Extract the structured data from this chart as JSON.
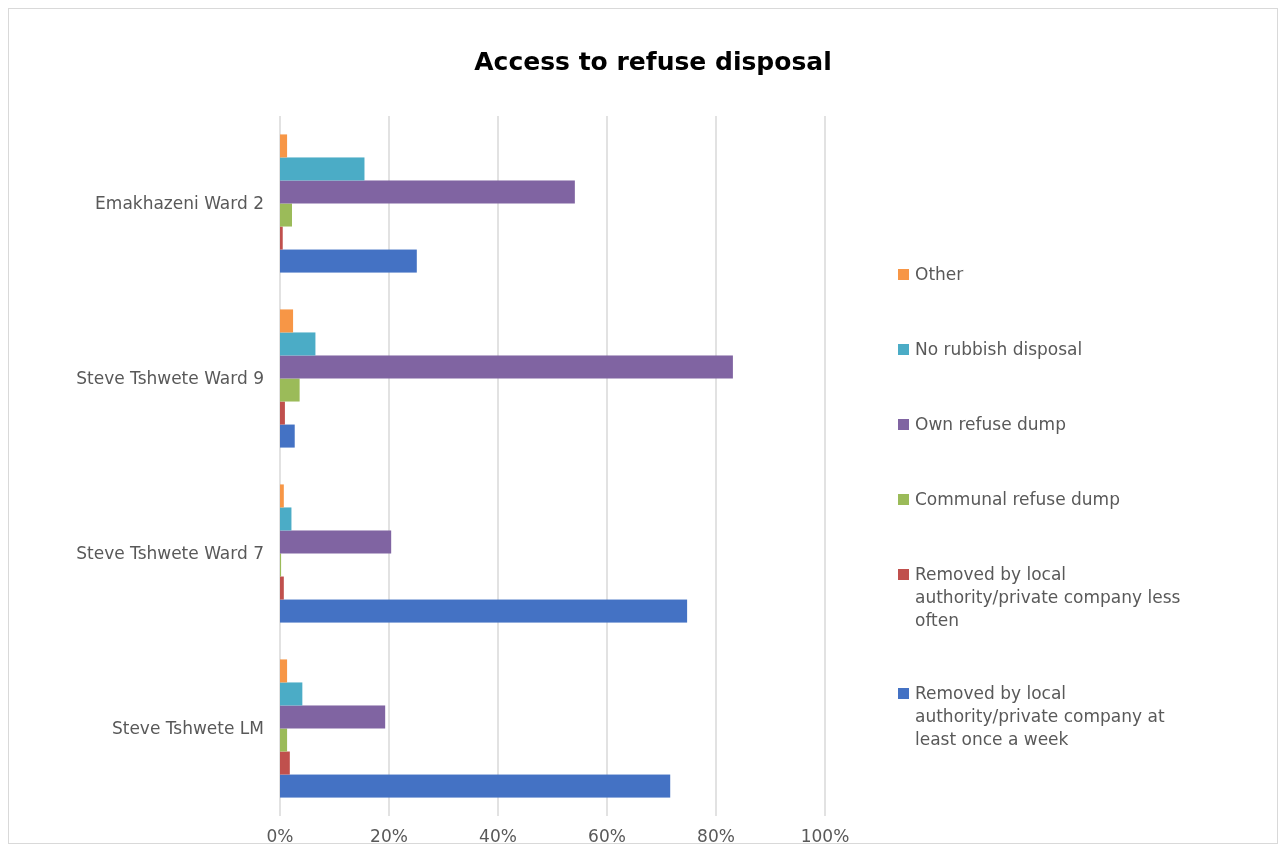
{
  "chart_data": {
    "type": "bar",
    "orientation": "horizontal",
    "title": "Access to refuse disposal",
    "categories": [
      "Emakhazeni Ward 2",
      "Steve Tshwete Ward 9",
      "Steve Tshwete Ward 7",
      "Steve Tshwete LM"
    ],
    "series": [
      {
        "name": "Removed by local authority/private company at least once a week",
        "color": "#4472c4",
        "values": [
          25.1,
          2.7,
          74.7,
          71.6
        ]
      },
      {
        "name": "Removed by local authority/private company less often",
        "color": "#c0504d",
        "values": [
          0.5,
          0.9,
          0.7,
          1.8
        ]
      },
      {
        "name": "Communal refuse dump",
        "color": "#9bbb59",
        "values": [
          2.2,
          3.6,
          0.2,
          1.3
        ]
      },
      {
        "name": "Own refuse dump",
        "color": "#8064a2",
        "values": [
          54.1,
          83.1,
          20.4,
          19.3
        ]
      },
      {
        "name": "No rubbish disposal",
        "color": "#4bacc6",
        "values": [
          15.5,
          6.5,
          2.1,
          4.1
        ]
      },
      {
        "name": "Other",
        "color": "#f79646",
        "values": [
          1.3,
          2.4,
          0.7,
          1.3
        ]
      }
    ],
    "xlim": [
      0,
      100
    ],
    "xticks": [
      {
        "value": 0,
        "label": "0%"
      },
      {
        "value": 20,
        "label": "20%"
      },
      {
        "value": 40,
        "label": "40%"
      },
      {
        "value": 60,
        "label": "60%"
      },
      {
        "value": 80,
        "label": "80%"
      },
      {
        "value": 100,
        "label": "100%"
      }
    ],
    "grid": "x",
    "legend": "right"
  }
}
